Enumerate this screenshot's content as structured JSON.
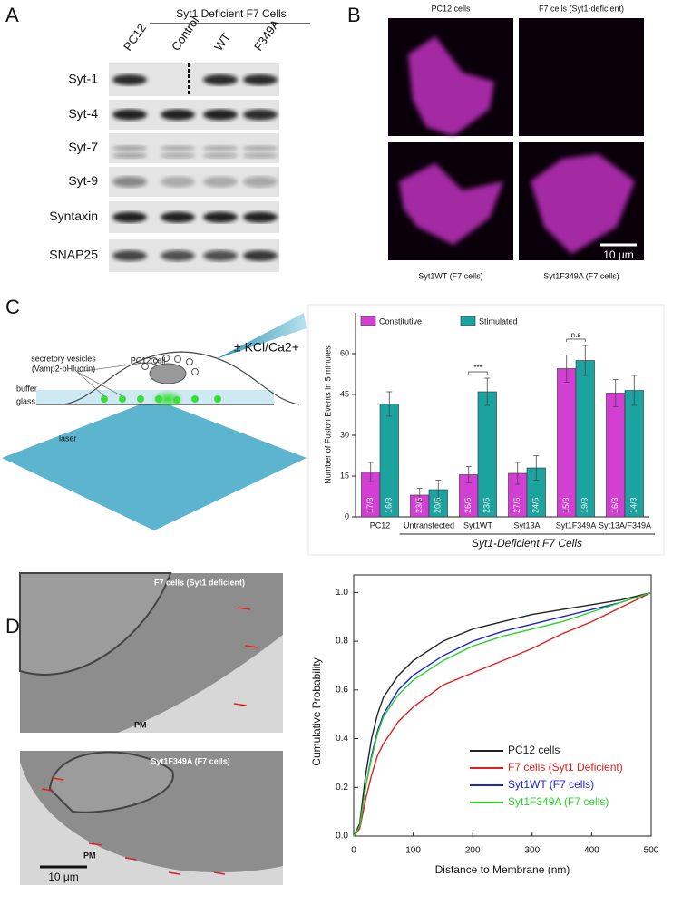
{
  "panel_labels": [
    "A",
    "B",
    "C",
    "D"
  ],
  "blot": {
    "header": "Syt1 Deficient F7 Cells",
    "lanes": [
      "PC12",
      "Control",
      "WT",
      "F349A"
    ],
    "rows": [
      "Syt-1",
      "Syt-4",
      "Syt-7",
      "Syt-9",
      "Syntaxin",
      "SNAP25"
    ]
  },
  "microscopy": {
    "titles": [
      "PC12 cells",
      "F7 cells (Syt1-deficient)",
      "Syt1WT (F7 cells)",
      "Syt1F349A (F7 cells)"
    ],
    "scale_bar": "10 μm"
  },
  "schematic": {
    "cell": "PC12 cell",
    "vesicles": "secretory vesicles",
    "reporter": "(Vamp2-pHluorin)",
    "buffer": "buffer",
    "glass": "glass",
    "laser": "laser",
    "stimulus": "± KCl/Ca2+"
  },
  "em": {
    "titles": [
      "F7 cells (Syt1 deficient)",
      "Syt1F349A (F7 cells)"
    ],
    "pm": [
      "PM",
      "PM"
    ],
    "scale_bar": "10 μm"
  },
  "chart_data": [
    {
      "type": "bar",
      "ylabel": "Number of Fusion Events in 5 minutes",
      "categories": [
        "PC12",
        "Untransfected",
        "Syt1WT",
        "Syt13A",
        "Syt1F349A",
        "Syt13A/F349A"
      ],
      "group_label": "Syt1-Deficient F7 Cells",
      "ylim": [
        0,
        75
      ],
      "yticks": [
        0,
        15,
        30,
        45,
        60
      ],
      "series": [
        {
          "name": "Constitutive",
          "color": "#d23fd2",
          "values": [
            16.5,
            8,
            15.5,
            16,
            54.5,
            45.5
          ],
          "errors": [
            3.5,
            2.5,
            3,
            4,
            5,
            5
          ],
          "annotations": [
            "17/3",
            "23/5",
            "26/5",
            "27/5",
            "15/3",
            "16/3"
          ]
        },
        {
          "name": "Stimulated",
          "color": "#1aa39f",
          "values": [
            41.5,
            10,
            46,
            18,
            57.5,
            46.5
          ],
          "errors": [
            4.5,
            3.5,
            5,
            4.5,
            5.5,
            5.5
          ],
          "annotations": [
            "16/3",
            "20/5",
            "23/5",
            "24/5",
            "19/3",
            "14/3"
          ]
        }
      ],
      "significance": [
        "***",
        "n.s"
      ]
    },
    {
      "type": "line",
      "xlabel": "Distance to Membrane (nm)",
      "ylabel": "Cumulative Probability",
      "x": [
        0,
        10,
        20,
        30,
        40,
        50,
        75,
        100,
        150,
        200,
        250,
        300,
        350,
        400,
        450,
        500
      ],
      "xlim": [
        0,
        500
      ],
      "xticks": [
        0,
        100,
        200,
        300,
        400,
        500
      ],
      "ylim": [
        0,
        1.02
      ],
      "yticks": [
        {
          "value": 0,
          "label": "0.0"
        },
        0.2,
        0.4,
        0.6,
        0.8,
        {
          "value": 1,
          "label": "1.0"
        }
      ],
      "series": [
        {
          "name": "PC12 cells",
          "color": "#222222",
          "values": [
            0,
            0.05,
            0.25,
            0.4,
            0.5,
            0.57,
            0.66,
            0.72,
            0.8,
            0.85,
            0.88,
            0.91,
            0.93,
            0.95,
            0.97,
            1.0
          ]
        },
        {
          "name": "F7 cells (Syt1 Deficient)",
          "color": "#e0201c",
          "values": [
            0,
            0.03,
            0.15,
            0.25,
            0.33,
            0.38,
            0.47,
            0.53,
            0.62,
            0.67,
            0.72,
            0.77,
            0.83,
            0.88,
            0.94,
            1.0
          ]
        },
        {
          "name": "Syt1WT (F7 cells)",
          "color": "#1c22d8",
          "values": [
            0,
            0.04,
            0.2,
            0.33,
            0.43,
            0.5,
            0.6,
            0.66,
            0.74,
            0.8,
            0.84,
            0.87,
            0.9,
            0.93,
            0.96,
            1.0
          ]
        },
        {
          "name": "Syt1F349A (F7 cells)",
          "color": "#2ad22a",
          "values": [
            0,
            0.04,
            0.2,
            0.32,
            0.42,
            0.49,
            0.58,
            0.64,
            0.72,
            0.78,
            0.82,
            0.85,
            0.88,
            0.92,
            0.96,
            1.0
          ]
        }
      ]
    }
  ]
}
